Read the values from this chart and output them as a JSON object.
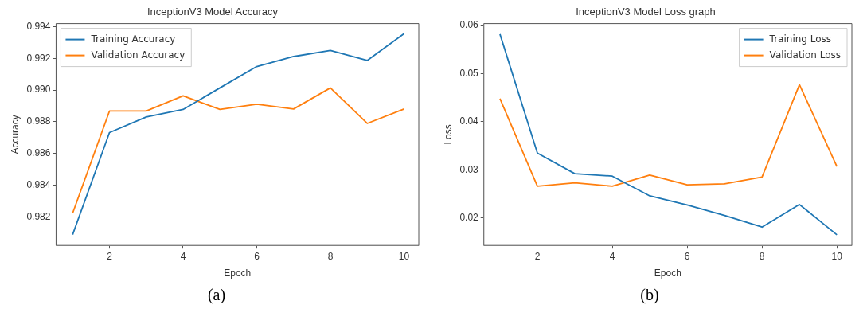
{
  "chart_data": [
    {
      "type": "line",
      "title": "InceptionV3 Model Accuracy",
      "xlabel": "Epoch",
      "ylabel": "Accuracy",
      "x": [
        1,
        2,
        3,
        4,
        5,
        6,
        7,
        8,
        9,
        10
      ],
      "series": [
        {
          "name": "Training Accuracy",
          "color": "#1f77b4",
          "values": [
            0.98088,
            0.98732,
            0.98831,
            0.98878,
            0.99014,
            0.99149,
            0.99212,
            0.9925,
            0.99187,
            0.99356
          ]
        },
        {
          "name": "Validation Accuracy",
          "color": "#ff7f0e",
          "values": [
            0.98223,
            0.98868,
            0.98868,
            0.98964,
            0.98878,
            0.98911,
            0.98881,
            0.99014,
            0.9879,
            0.98881
          ]
        }
      ],
      "xlim": [
        0.55,
        10.4
      ],
      "xticks": [
        2,
        4,
        6,
        8,
        10
      ],
      "ylim": [
        0.9802,
        0.9942
      ],
      "yticks": [
        0.982,
        0.984,
        0.986,
        0.988,
        {
          "value": 0.99,
          "label": "0.990"
        },
        {
          "value": 0.992,
          "label": "0.992"
        },
        0.994
      ],
      "grid": false,
      "legend": "top left",
      "marker": "none",
      "line_style": "solid",
      "annotations": [
        "(a)"
      ]
    },
    {
      "type": "line",
      "title": "InceptionV3 Model Loss graph",
      "xlabel": "Epoch",
      "ylabel": "Loss",
      "x": [
        1,
        2,
        3,
        4,
        5,
        6,
        7,
        8,
        9,
        10
      ],
      "series": [
        {
          "name": "Training Loss",
          "color": "#1f77b4",
          "values": [
            0.0582,
            0.0335,
            0.0292,
            0.0287,
            0.0246,
            0.0227,
            0.0205,
            0.0181,
            0.0228,
            0.0165
          ]
        },
        {
          "name": "Validation Loss",
          "color": "#ff7f0e",
          "values": [
            0.0448,
            0.0266,
            0.0273,
            0.0266,
            0.0289,
            0.0269,
            0.0271,
            0.0285,
            0.0477,
            0.0307
          ]
        }
      ],
      "xlim": [
        0.57,
        10.4
      ],
      "xticks": [
        2,
        4,
        6,
        8,
        10
      ],
      "ylim": [
        0.0143,
        0.0604
      ],
      "yticks": [
        0.02,
        0.03,
        0.04,
        0.05,
        0.06
      ],
      "grid": false,
      "legend": "top right",
      "marker": "none",
      "line_style": "solid",
      "annotations": [
        "(b)"
      ]
    }
  ]
}
